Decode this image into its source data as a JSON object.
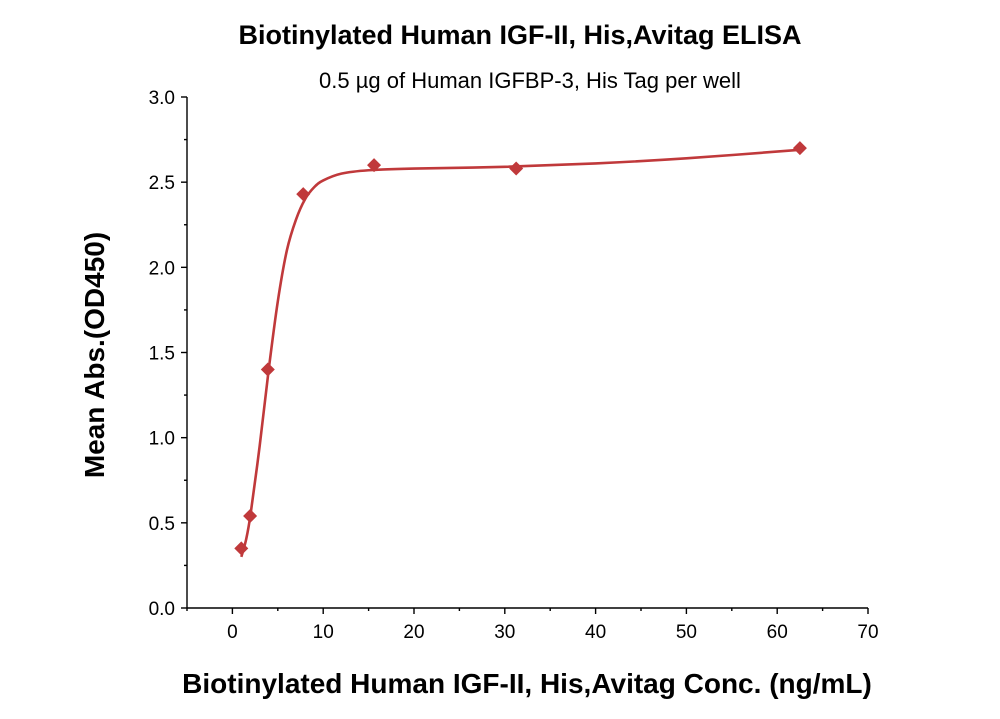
{
  "chart_data": {
    "type": "scatter",
    "title": "Biotinylated Human IGF-II, His,Avitag ELISA",
    "subtitle": "0.5 µg of Human IGFBP-3, His Tag per well",
    "xlabel": "Biotinylated Human IGF-II, His,Avitag Conc. (ng/mL)",
    "ylabel": "Mean Abs.(OD450)",
    "xlim": [
      -5,
      70
    ],
    "ylim": [
      0,
      3.0
    ],
    "x_ticks": [
      0,
      10,
      20,
      30,
      40,
      50,
      60,
      70
    ],
    "y_ticks": [
      0.0,
      0.5,
      1.0,
      1.5,
      2.0,
      2.5,
      3.0
    ],
    "x_tick_labels": [
      "0",
      "10",
      "20",
      "30",
      "40",
      "50",
      "60",
      "70"
    ],
    "y_tick_labels": [
      "0.0",
      "0.5",
      "1.0",
      "1.5",
      "2.0",
      "2.5",
      "3.0"
    ],
    "grid": false,
    "series": [
      {
        "marker": "diamond",
        "color": "#C0393B",
        "points": [
          {
            "x": 0.98,
            "y": 0.35
          },
          {
            "x": 1.95,
            "y": 0.54
          },
          {
            "x": 3.9,
            "y": 1.4
          },
          {
            "x": 7.8,
            "y": 2.43
          },
          {
            "x": 15.6,
            "y": 2.6
          },
          {
            "x": 31.25,
            "y": 2.58
          },
          {
            "x": 62.5,
            "y": 2.7
          }
        ]
      }
    ],
    "fit_curve": {
      "color": "#C0393B",
      "points": [
        {
          "x": 0.98,
          "y": 0.3
        },
        {
          "x": 1.5,
          "y": 0.4
        },
        {
          "x": 2.0,
          "y": 0.55
        },
        {
          "x": 3.0,
          "y": 0.95
        },
        {
          "x": 4.0,
          "y": 1.4
        },
        {
          "x": 5.0,
          "y": 1.8
        },
        {
          "x": 6.0,
          "y": 2.1
        },
        {
          "x": 7.0,
          "y": 2.28
        },
        {
          "x": 8.0,
          "y": 2.4
        },
        {
          "x": 9.0,
          "y": 2.47
        },
        {
          "x": 10.0,
          "y": 2.51
        },
        {
          "x": 12.0,
          "y": 2.55
        },
        {
          "x": 15.0,
          "y": 2.57
        },
        {
          "x": 20.0,
          "y": 2.58
        },
        {
          "x": 30.0,
          "y": 2.59
        },
        {
          "x": 40.0,
          "y": 2.61
        },
        {
          "x": 50.0,
          "y": 2.64
        },
        {
          "x": 62.5,
          "y": 2.69
        }
      ]
    }
  }
}
